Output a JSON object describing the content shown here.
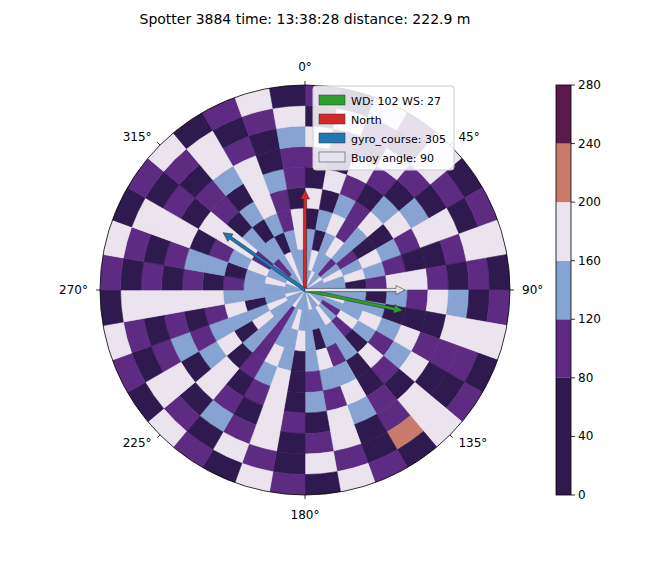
{
  "chart_data": {
    "type": "polar_image",
    "title": "Spotter 3884 time: 13:38:28 distance: 222.9 m",
    "theta_ticks": [
      {
        "value": 0,
        "label": "0°"
      },
      {
        "value": 45,
        "label": "45°"
      },
      {
        "value": 90,
        "label": "90°"
      },
      {
        "value": 135,
        "label": "135°"
      },
      {
        "value": 180,
        "label": "180°"
      },
      {
        "value": 225,
        "label": "225°"
      },
      {
        "value": 270,
        "label": "270°"
      },
      {
        "value": 315,
        "label": "315°"
      }
    ],
    "legend": "upper right",
    "series": [
      {
        "name": "WD: 102 WS: 27",
        "color": "#2ca02c",
        "angle": 102
      },
      {
        "name": "North",
        "color": "#d62728",
        "angle": 0
      },
      {
        "name": "gyro_course: 305",
        "color": "#1f77b4",
        "angle": 305
      },
      {
        "name": "Buoy angle: 90",
        "color": "#e4e4ee",
        "angle": 90
      }
    ],
    "colorbar": {
      "lim": [
        0,
        280
      ],
      "ticks": [
        0,
        40,
        80,
        120,
        160,
        200,
        240,
        280
      ],
      "bounds": [
        0,
        80,
        120,
        160,
        200,
        240,
        280
      ],
      "colors": [
        "#2f1a4f",
        "#5e2b82",
        "#86a3d2",
        "#ebe3ee",
        "#c97b6b",
        "#5a1a4c"
      ]
    },
    "cells": [
      [
        150,
        140,
        170,
        135,
        145,
        180,
        150,
        130,
        140,
        175,
        145,
        150,
        135,
        160,
        140,
        150,
        170,
        145,
        130,
        150,
        140,
        165,
        150,
        135,
        145,
        175,
        140,
        150,
        130,
        160,
        145,
        150,
        140,
        170,
        135,
        150
      ],
      [
        140,
        175,
        130,
        150,
        95,
        145,
        180,
        140,
        150,
        130,
        165,
        140,
        100,
        150,
        175,
        135,
        145,
        150,
        130,
        170,
        140,
        95,
        150,
        145,
        180,
        135,
        140,
        150,
        165,
        130,
        145,
        100,
        150,
        175,
        140,
        135
      ],
      [
        130,
        60,
        150,
        180,
        140,
        100,
        145,
        175,
        60,
        140,
        150,
        130,
        185,
        100,
        145,
        140,
        60,
        150,
        175,
        135,
        145,
        100,
        150,
        180,
        140,
        65,
        145,
        150,
        130,
        175,
        100,
        140,
        150,
        60,
        145,
        180
      ],
      [
        60,
        150,
        180,
        100,
        140,
        55,
        175,
        145,
        100,
        60,
        150,
        185,
        140,
        55,
        150,
        100,
        175,
        140,
        60,
        150,
        185,
        100,
        145,
        60,
        140,
        175,
        150,
        100,
        55,
        145,
        180,
        140,
        60,
        150,
        100,
        175
      ],
      [
        175,
        55,
        140,
        100,
        185,
        60,
        150,
        100,
        175,
        140,
        50,
        150,
        100,
        180,
        60,
        145,
        150,
        100,
        55,
        180,
        140,
        100,
        60,
        175,
        150,
        100,
        185,
        55,
        140,
        100,
        175,
        60,
        150,
        185,
        100,
        55
      ],
      [
        50,
        180,
        100,
        55,
        150,
        175,
        100,
        60,
        185,
        100,
        50,
        175,
        140,
        100,
        55,
        180,
        100,
        150,
        60,
        185,
        100,
        55,
        175,
        140,
        100,
        60,
        180,
        100,
        150,
        55,
        185,
        100,
        60,
        175,
        140,
        100
      ],
      [
        100,
        55,
        185,
        100,
        60,
        140,
        180,
        50,
        100,
        175,
        60,
        100,
        185,
        55,
        100,
        150,
        180,
        60,
        100,
        185,
        55,
        100,
        175,
        60,
        140,
        100,
        185,
        50,
        100,
        180,
        60,
        100,
        150,
        185,
        55,
        100
      ],
      [
        185,
        100,
        50,
        175,
        100,
        60,
        185,
        100,
        55,
        150,
        180,
        100,
        50,
        185,
        100,
        60,
        175,
        100,
        55,
        185,
        100,
        150,
        60,
        185,
        100,
        50,
        175,
        100,
        60,
        185,
        100,
        55,
        180,
        100,
        60,
        150
      ],
      [
        60,
        185,
        100,
        55,
        180,
        100,
        50,
        185,
        100,
        60,
        175,
        100,
        55,
        185,
        210,
        60,
        100,
        180,
        55,
        100,
        185,
        60,
        100,
        175,
        50,
        100,
        185,
        60,
        100,
        180,
        55,
        100,
        185,
        60,
        100,
        175
      ],
      [
        100,
        55,
        180,
        100,
        185,
        60,
        100,
        175,
        55,
        100,
        185,
        60,
        100,
        180,
        50,
        100,
        185,
        55,
        100,
        175,
        60,
        100,
        185,
        50,
        100,
        180,
        60,
        100,
        185,
        55,
        100,
        175,
        60,
        100,
        185,
        55
      ]
    ]
  }
}
